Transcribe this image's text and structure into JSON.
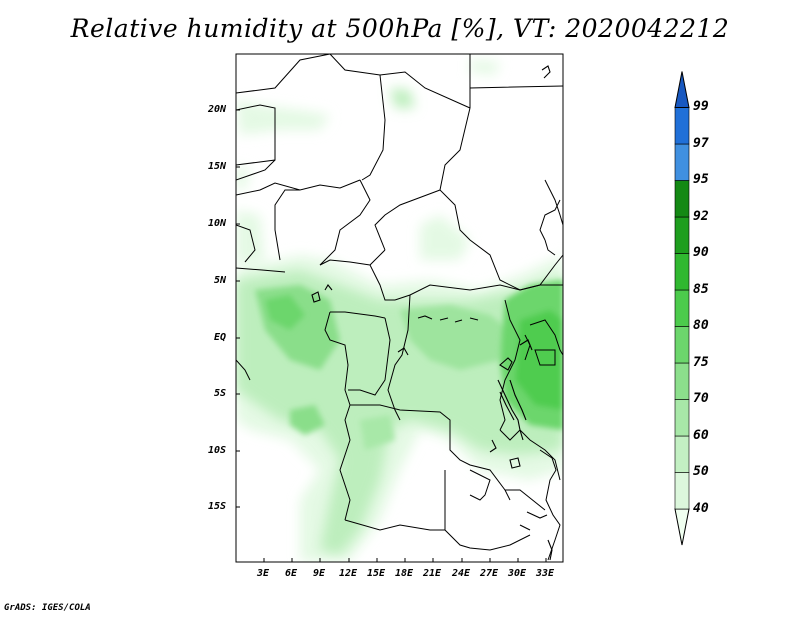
{
  "title": "Relative humidity at 500hPa [%], VT: 2020042212",
  "credit": "GrADS: IGES/COLA",
  "map": {
    "lat_labels": [
      "20N",
      "15N",
      "10N",
      "5N",
      "EQ",
      "5S",
      "10S",
      "15S"
    ],
    "lon_labels": [
      "3E",
      "6E",
      "9E",
      "12E",
      "15E",
      "18E",
      "21E",
      "24E",
      "27E",
      "30E",
      "33E"
    ]
  },
  "colorbar": {
    "levels": [
      "40",
      "50",
      "60",
      "70",
      "75",
      "80",
      "85",
      "90",
      "92",
      "95",
      "97",
      "99"
    ],
    "colors": [
      "#f0fff0",
      "#dcf7dc",
      "#c3f0c3",
      "#a8e8a8",
      "#8cdf8c",
      "#6cd66c",
      "#4ccb4c",
      "#30b830",
      "#1e9e1e",
      "#148914",
      "#4090e0",
      "#2070d8",
      "#1858c0"
    ]
  }
}
